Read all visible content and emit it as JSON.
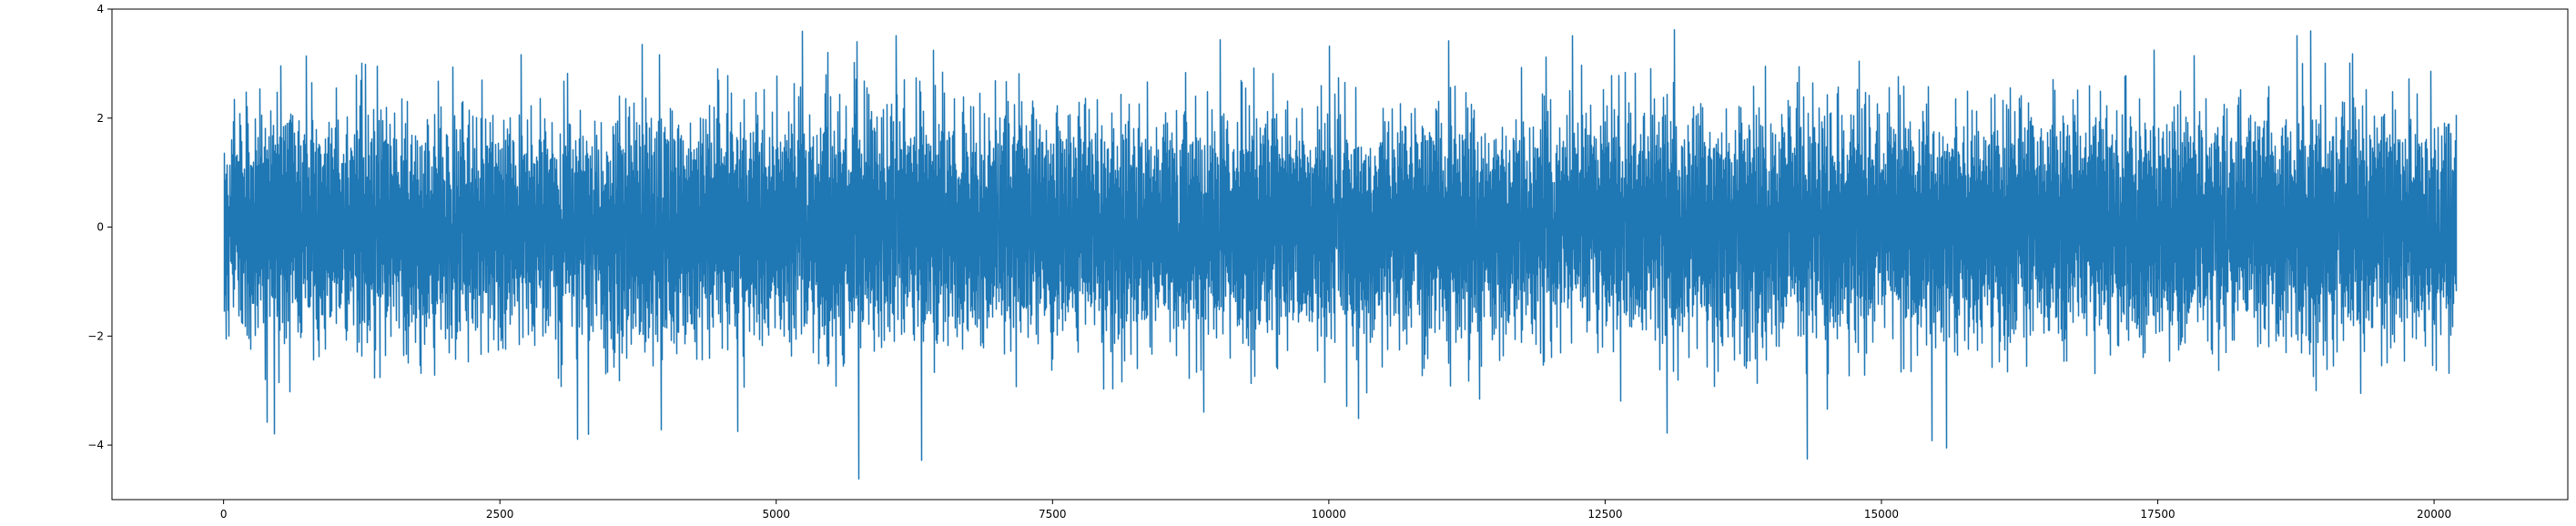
{
  "chart_data": {
    "type": "line",
    "title": "",
    "xlabel": "",
    "ylabel": "",
    "xlim": [
      -1010,
      21210
    ],
    "ylim": [
      -5.0,
      4.0
    ],
    "x_ticks": [
      0,
      2500,
      5000,
      7500,
      10000,
      12500,
      15000,
      17500,
      20000
    ],
    "x_tick_labels": [
      "0",
      "2500",
      "5000",
      "7500",
      "10000",
      "12500",
      "15000",
      "17500",
      "20000"
    ],
    "y_ticks": [
      -4,
      -2,
      0,
      2,
      4
    ],
    "y_tick_labels": [
      "−4",
      "−2",
      "0",
      "2",
      "4"
    ],
    "grid": false,
    "legend": "none",
    "series": [
      {
        "color": "#1f77b4",
        "n_points": 20200,
        "x_start": 0,
        "x_end": 20199,
        "approx_mean": 0.0,
        "approx_std": 0.95,
        "approx_min": -4.62,
        "approx_max": 3.62,
        "notable_extremes": [
          {
            "x": 5740,
            "y": -4.62
          },
          {
            "x": 6310,
            "y": -4.28
          },
          {
            "x": 15450,
            "y": -3.92
          },
          {
            "x": 13060,
            "y": -3.78
          },
          {
            "x": 4650,
            "y": -3.75
          },
          {
            "x": 3960,
            "y": -3.72
          },
          {
            "x": 390,
            "y": -3.58
          },
          {
            "x": 13120,
            "y": 3.62
          },
          {
            "x": 18880,
            "y": 3.6
          },
          {
            "x": 5730,
            "y": 3.4
          },
          {
            "x": 3780,
            "y": 3.35
          },
          {
            "x": 10000,
            "y": 3.32
          },
          {
            "x": 19260,
            "y": 3.18
          }
        ]
      }
    ]
  }
}
